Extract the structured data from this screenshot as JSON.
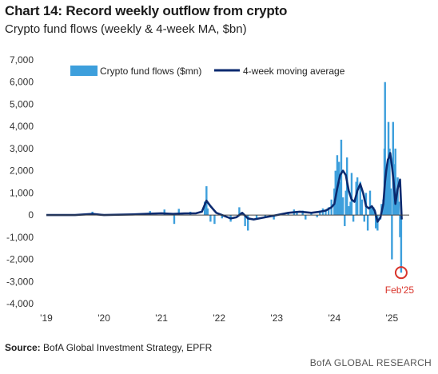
{
  "header": {
    "title": "Chart 14: Record weekly outflow from crypto",
    "subtitle": "Crypto fund flows (weekly & 4-week MA, $bn)"
  },
  "footer": {
    "source_label": "Source:",
    "source_text": "BofA Global Investment Strategy, EPFR",
    "credit": "BofA GLOBAL RESEARCH"
  },
  "colors": {
    "bars": "#3d9fdc",
    "ma_line": "#0b2a6f",
    "zero_line": "#444444",
    "annotation": "#d9342b"
  },
  "chart_data": {
    "type": "bar",
    "title": "Chart 14: Record weekly outflow from crypto",
    "subtitle": "Crypto fund flows (weekly & 4-week MA, $bn)",
    "ylim": [
      -4000,
      7000
    ],
    "y_ticks": [
      7000,
      6000,
      5000,
      4000,
      3000,
      2000,
      1000,
      0,
      -1000,
      -2000,
      -3000,
      -4000
    ],
    "y_tick_labels": [
      "7,000",
      "6,000",
      "5,000",
      "4,000",
      "3,000",
      "2,000",
      "1,000",
      "0",
      "-1,000",
      "-2,000",
      "-3,000",
      "-4,000"
    ],
    "xlim": [
      2019.0,
      2025.3
    ],
    "x_ticks": [
      2019,
      2020,
      2021,
      2022,
      2023,
      2024,
      2025
    ],
    "x_tick_labels": [
      "'19",
      "'20",
      "'21",
      "'22",
      "'23",
      "'24",
      "'25"
    ],
    "legend": {
      "position": "top-left"
    },
    "series": [
      {
        "name": "Crypto fund flows ($mn)",
        "kind": "bar",
        "x": [
          2019.8,
          2020.8,
          2021.05,
          2021.22,
          2021.3,
          2021.5,
          2021.75,
          2021.78,
          2021.8,
          2021.85,
          2021.92,
          2022.05,
          2022.2,
          2022.35,
          2022.45,
          2022.5,
          2022.65,
          2022.8,
          2022.95,
          2023.2,
          2023.3,
          2023.35,
          2023.45,
          2023.5,
          2023.6,
          2023.7,
          2023.75,
          2023.8,
          2023.85,
          2023.9,
          2023.95,
          2024.0,
          2024.02,
          2024.05,
          2024.08,
          2024.1,
          2024.12,
          2024.15,
          2024.18,
          2024.2,
          2024.22,
          2024.25,
          2024.28,
          2024.3,
          2024.33,
          2024.38,
          2024.4,
          2024.45,
          2024.48,
          2024.52,
          2024.55,
          2024.58,
          2024.62,
          2024.65,
          2024.68,
          2024.72,
          2024.75,
          2024.8,
          2024.82,
          2024.85,
          2024.87,
          2024.88,
          2024.9,
          2024.92,
          2024.94,
          2024.96,
          2024.98,
          2025.0,
          2025.02,
          2025.04,
          2025.06,
          2025.08,
          2025.1,
          2025.12,
          2025.14,
          2025.16
        ],
        "values": [
          150,
          180,
          250,
          -400,
          280,
          150,
          600,
          1300,
          300,
          -300,
          -400,
          -150,
          -300,
          350,
          -500,
          -700,
          -200,
          -100,
          -200,
          100,
          250,
          150,
          200,
          -200,
          100,
          -100,
          200,
          300,
          250,
          350,
          700,
          1200,
          2000,
          2700,
          2400,
          1500,
          3400,
          800,
          -500,
          1100,
          2600,
          400,
          600,
          1900,
          -300,
          1500,
          1700,
          1500,
          700,
          -300,
          1000,
          -700,
          1100,
          350,
          350,
          -600,
          -700,
          -200,
          500,
          700,
          3000,
          6000,
          1800,
          2300,
          4200,
          3000,
          1200,
          -2000,
          4200,
          2300,
          3000,
          1000,
          1700,
          600,
          -1000,
          -2600
        ],
        "color": "#3d9fdc"
      },
      {
        "name": "4-week moving average",
        "kind": "line",
        "x": [
          2019.0,
          2019.5,
          2019.8,
          2020.0,
          2020.5,
          2020.8,
          2021.0,
          2021.2,
          2021.4,
          2021.6,
          2021.7,
          2021.78,
          2021.85,
          2021.95,
          2022.05,
          2022.2,
          2022.3,
          2022.4,
          2022.5,
          2022.6,
          2022.8,
          2023.0,
          2023.2,
          2023.4,
          2023.6,
          2023.75,
          2023.85,
          2023.95,
          2024.0,
          2024.05,
          2024.1,
          2024.15,
          2024.2,
          2024.25,
          2024.3,
          2024.35,
          2024.4,
          2024.45,
          2024.5,
          2024.55,
          2024.6,
          2024.65,
          2024.7,
          2024.75,
          2024.8,
          2024.85,
          2024.88,
          2024.9,
          2024.93,
          2024.95,
          2024.97,
          2025.0,
          2025.03,
          2025.06,
          2025.1,
          2025.14,
          2025.17
        ],
        "values": [
          0,
          0,
          50,
          0,
          30,
          60,
          80,
          50,
          70,
          80,
          150,
          650,
          400,
          100,
          0,
          -150,
          -100,
          100,
          -150,
          -200,
          -100,
          0,
          100,
          150,
          100,
          150,
          200,
          350,
          500,
          1200,
          1800,
          2000,
          1800,
          1100,
          700,
          600,
          1100,
          1400,
          1000,
          400,
          300,
          400,
          200,
          -300,
          -100,
          500,
          1500,
          2000,
          2500,
          2600,
          2800,
          2200,
          1500,
          500,
          1200,
          1600,
          -200
        ],
        "color": "#0b2a6f"
      }
    ],
    "annotations": [
      {
        "label": "Feb'25",
        "x": 2025.16,
        "y": -2600,
        "marker": "circle",
        "color": "#d9342b"
      }
    ]
  }
}
